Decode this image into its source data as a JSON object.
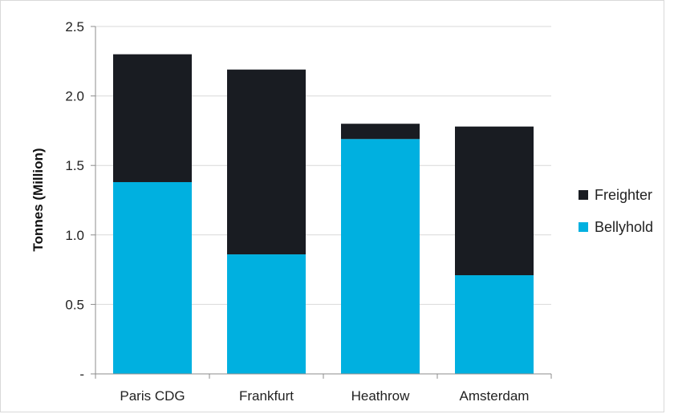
{
  "chart_data": {
    "type": "bar",
    "stacked": true,
    "title": "",
    "xlabel": "",
    "ylabel": "Tonnes (Million)",
    "ylim": [
      0,
      2.5
    ],
    "yticks": [
      0,
      0.5,
      1.0,
      1.5,
      2.0,
      2.5
    ],
    "ytick_labels": [
      "-",
      "0.5",
      "1.0",
      "1.5",
      "2.0",
      "2.5"
    ],
    "categories": [
      "Paris CDG",
      "Frankfurt",
      "Heathrow",
      "Amsterdam"
    ],
    "series": [
      {
        "name": "Bellyhold",
        "color": "#00b0e0",
        "values": [
          1.38,
          0.86,
          1.69,
          0.71
        ]
      },
      {
        "name": "Freighter",
        "color": "#191c22",
        "values": [
          0.92,
          1.33,
          0.11,
          1.07
        ]
      }
    ],
    "legend": {
      "placement": "right",
      "entries": [
        "Freighter",
        "Bellyhold"
      ]
    },
    "grid": true
  }
}
